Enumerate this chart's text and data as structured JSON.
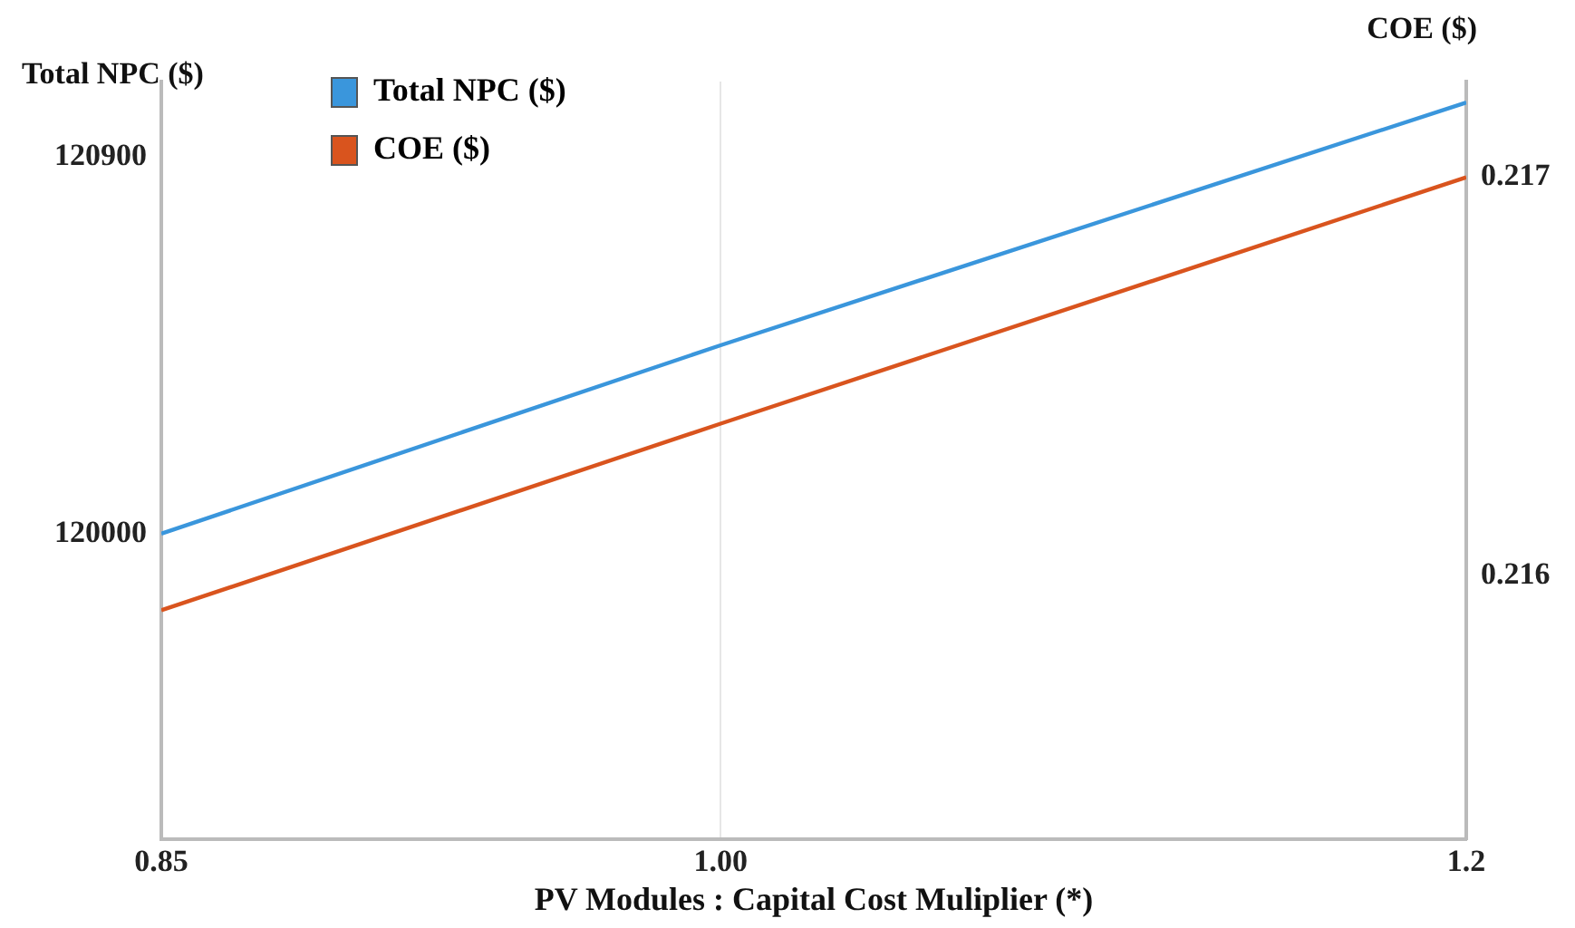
{
  "chart_data": {
    "type": "line",
    "xlabel": "PV Modules : Capital Cost Muliplier (*)",
    "ylabel": "Total NPC ($)",
    "y2label": "COE ($)",
    "x": [
      0.85,
      1.0,
      1.2
    ],
    "xlim": [
      0.85,
      1.2
    ],
    "xticks": [
      {
        "value": 0.85,
        "label": "0.85"
      },
      {
        "value": 1.0,
        "label": "1.00"
      },
      1.2
    ],
    "ylim": [
      119270,
      121080
    ],
    "yticks": [
      120000,
      120900
    ],
    "y2lim": [
      0.21534,
      0.21724
    ],
    "y2ticks": [
      0.216,
      0.217
    ],
    "series": [
      {
        "name": "Total NPC ($)",
        "color": "#3a96dc",
        "values": [
          120000,
          120450,
          121030
        ]
      },
      {
        "name": "COE ($)",
        "color": "#d9541e",
        "axis": "y2",
        "values": [
          0.215914,
          0.216382,
          0.217
        ]
      }
    ],
    "grid": "x",
    "legend": "top left",
    "marker": "none",
    "line_style": "solid"
  }
}
